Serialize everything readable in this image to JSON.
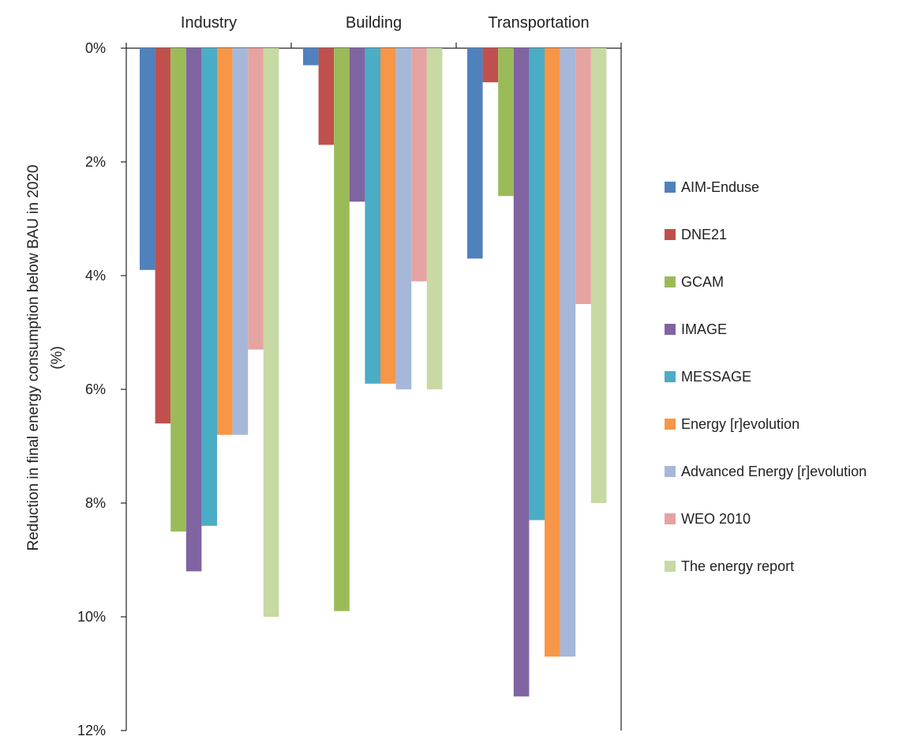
{
  "chart_data": {
    "type": "bar",
    "title": "",
    "xlabel": "",
    "ylabel": "Reduction in final energy consumption below BAU in 2020 (%)",
    "ylabel_lines": [
      "Reduction in final energy consumption below BAU in 2020",
      "(%)"
    ],
    "y_axis_inverted": true,
    "ylim": [
      0,
      12
    ],
    "y_ticks": [
      0,
      2,
      4,
      6,
      8,
      10,
      12
    ],
    "y_tick_labels": [
      "0%",
      "2%",
      "4%",
      "6%",
      "8%",
      "10%",
      "12%"
    ],
    "categories": [
      "Industry",
      "Building",
      "Transportation"
    ],
    "category_axis_position": "top",
    "grid": false,
    "legend_position": "right",
    "series": [
      {
        "name": "AIM-Enduse",
        "color": "#4f81bd",
        "values": [
          3.9,
          0.3,
          3.7
        ]
      },
      {
        "name": "DNE21",
        "color": "#c0504d",
        "values": [
          6.6,
          1.7,
          0.6
        ]
      },
      {
        "name": "GCAM",
        "color": "#9bbb59",
        "values": [
          8.5,
          9.9,
          2.6
        ]
      },
      {
        "name": "IMAGE",
        "color": "#8064a2",
        "values": [
          9.2,
          2.7,
          11.4
        ]
      },
      {
        "name": "MESSAGE",
        "color": "#4bacc6",
        "values": [
          8.4,
          5.9,
          8.3
        ]
      },
      {
        "name": "Energy [r]evolution",
        "color": "#f79646",
        "values": [
          6.8,
          5.9,
          10.7
        ]
      },
      {
        "name": "Advanced Energy [r]evolution",
        "color": "#a5b8da",
        "values": [
          6.8,
          6.0,
          10.7
        ]
      },
      {
        "name": "WEO 2010",
        "color": "#e5a3a2",
        "values": [
          5.3,
          4.1,
          4.5
        ]
      },
      {
        "name": "The energy report",
        "color": "#c8d9a4",
        "values": [
          10.0,
          6.0,
          8.0
        ]
      }
    ]
  }
}
